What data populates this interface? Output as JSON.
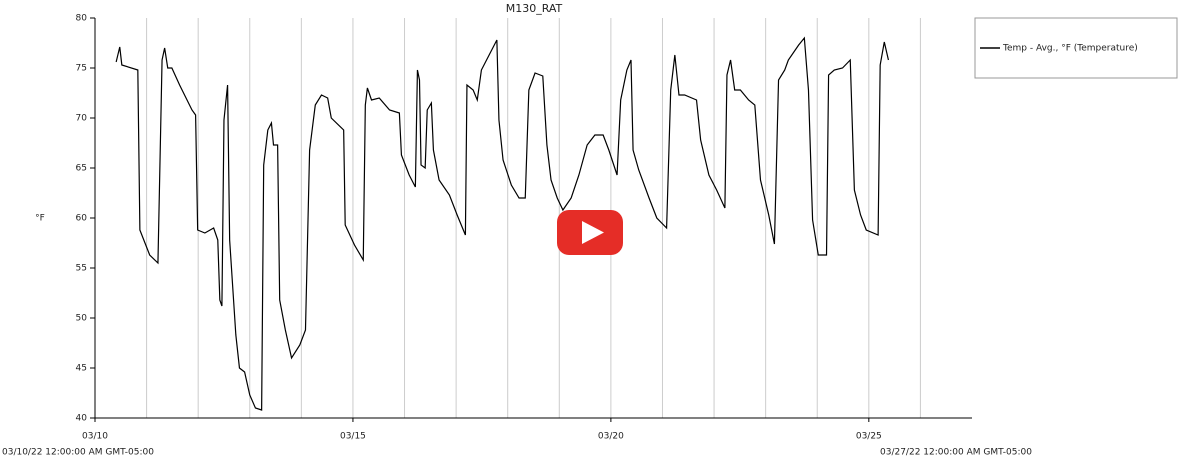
{
  "chart_data": {
    "type": "line",
    "title": "M130_RAT",
    "y_label": "°F",
    "start_label": "03/10/22 12:00:00 AM GMT-05:00",
    "end_label": "03/27/22 12:00:00 AM GMT-05:00",
    "xlim": [
      0,
      17
    ],
    "ylim": [
      40,
      80
    ],
    "xticks": [
      {
        "value": 0,
        "label": "03/10"
      },
      {
        "value": 5,
        "label": "03/15"
      },
      {
        "value": 10,
        "label": "03/20"
      },
      {
        "value": 15,
        "label": "03/25"
      }
    ],
    "xminor": [
      1,
      2,
      3,
      4,
      6,
      7,
      8,
      9,
      11,
      12,
      13,
      14,
      16
    ],
    "yticks": [
      40,
      45,
      50,
      55,
      60,
      65,
      70,
      75,
      80
    ],
    "grid": true,
    "legend": "top-right",
    "x": [
      0.41,
      0.48,
      0.52,
      0.83,
      0.87,
      1.06,
      1.22,
      1.3,
      1.35,
      1.41,
      1.49,
      1.64,
      1.88,
      1.95,
      1.99,
      2.13,
      2.3,
      2.38,
      2.42,
      2.46,
      2.5,
      2.57,
      2.61,
      2.73,
      2.8,
      2.9,
      3.0,
      3.11,
      3.23,
      3.27,
      3.35,
      3.42,
      3.46,
      3.54,
      3.58,
      3.69,
      3.81,
      3.97,
      4.08,
      4.16,
      4.27,
      4.39,
      4.51,
      4.58,
      4.82,
      4.85,
      5.03,
      5.2,
      5.24,
      5.28,
      5.36,
      5.51,
      5.71,
      5.9,
      5.94,
      6.09,
      6.21,
      6.25,
      6.29,
      6.32,
      6.4,
      6.44,
      6.52,
      6.56,
      6.67,
      6.87,
      7.02,
      7.18,
      7.21,
      7.33,
      7.41,
      7.49,
      7.64,
      7.79,
      7.83,
      7.91,
      8.07,
      8.22,
      8.34,
      8.41,
      8.53,
      8.68,
      8.76,
      8.84,
      8.96,
      9.07,
      9.23,
      9.38,
      9.54,
      9.69,
      9.85,
      9.96,
      10.12,
      10.19,
      10.31,
      10.39,
      10.43,
      10.54,
      10.74,
      10.89,
      11.08,
      11.16,
      11.24,
      11.32,
      11.43,
      11.66,
      11.74,
      11.9,
      12.05,
      12.21,
      12.25,
      12.32,
      12.4,
      12.51,
      12.67,
      12.79,
      12.9,
      13.06,
      13.17,
      13.25,
      13.37,
      13.44,
      13.64,
      13.75,
      13.83,
      13.91,
      14.02,
      14.18,
      14.22,
      14.33,
      14.49,
      14.64,
      14.72,
      14.84,
      14.95,
      15.18,
      15.22,
      15.3,
      15.38
    ],
    "series": [
      {
        "name": "Temp - Avg., °F (Temperature)",
        "color": "#000000",
        "values": [
          75.6,
          77.1,
          75.3,
          74.8,
          58.8,
          56.3,
          55.5,
          75.8,
          77.0,
          75,
          75,
          73.3,
          70.8,
          70.3,
          58.8,
          58.5,
          59,
          57.8,
          51.8,
          51.2,
          69.8,
          73.3,
          57.8,
          48.3,
          45,
          44.6,
          42.3,
          41,
          40.8,
          65.3,
          68.8,
          69.5,
          67.3,
          67.3,
          51.8,
          48.8,
          46,
          47.3,
          48.8,
          66.8,
          71.3,
          72.3,
          72,
          70,
          68.8,
          59.3,
          57.3,
          55.8,
          71.3,
          73,
          71.8,
          72,
          70.8,
          70.5,
          66.3,
          64.3,
          63.1,
          74.8,
          73.8,
          65.3,
          65,
          70.8,
          71.5,
          66.8,
          63.8,
          62.3,
          60.3,
          58.3,
          73.3,
          72.8,
          71.8,
          74.8,
          76.3,
          77.8,
          69.8,
          65.8,
          63.3,
          62,
          62,
          72.8,
          74.5,
          74.2,
          67.3,
          63.8,
          62,
          60.8,
          62,
          64.3,
          67.3,
          68.3,
          68.3,
          66.8,
          64.3,
          71.8,
          74.8,
          75.8,
          66.8,
          64.8,
          62,
          60,
          59,
          72.8,
          76.3,
          72.3,
          72.3,
          71.8,
          67.8,
          64.3,
          62.8,
          61,
          74.3,
          75.8,
          72.8,
          72.8,
          71.8,
          71.3,
          63.8,
          60.3,
          57.4,
          73.8,
          74.8,
          75.8,
          77.3,
          78,
          72.8,
          59.8,
          56.3,
          56.3,
          74.3,
          74.8,
          75,
          75.8,
          62.8,
          60.3,
          58.8,
          58.3,
          75.3,
          77.6,
          75.8
        ]
      }
    ]
  }
}
